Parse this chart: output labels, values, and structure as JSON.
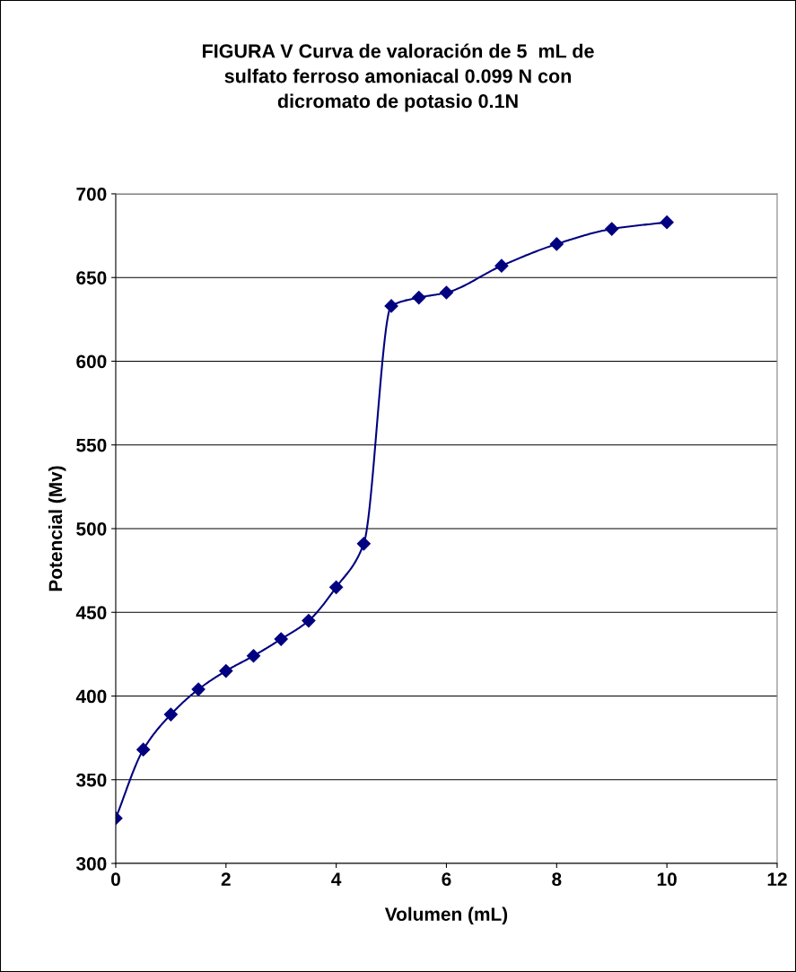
{
  "chart_data": {
    "type": "line",
    "title": "FIGURA V Curva de valoración de 5  mL de\nsulfato ferroso amoniacal 0.099 N con\ndicromato de potasio 0.1N",
    "xlabel": "Volumen (mL)",
    "ylabel": "Potencial (Mv)",
    "x": [
      0,
      0.5,
      1,
      1.5,
      2,
      2.5,
      3,
      3.5,
      4,
      4.5,
      5,
      5.5,
      6,
      7,
      8,
      9,
      10
    ],
    "series": [
      {
        "color": "#000080",
        "values": [
          327,
          368,
          389,
          404,
          415,
          424,
          434,
          445,
          465,
          491,
          633,
          638,
          641,
          657,
          670,
          679,
          683
        ]
      }
    ],
    "xlim": [
      0,
      12
    ],
    "xticks": [
      0,
      2,
      4,
      6,
      8,
      10,
      12
    ],
    "ylim": [
      300,
      700
    ],
    "yticks": [
      300,
      350,
      400,
      450,
      500,
      550,
      600,
      650,
      700
    ],
    "grid": "y",
    "legend": false,
    "marker": "diamond",
    "line_style": "solid"
  }
}
